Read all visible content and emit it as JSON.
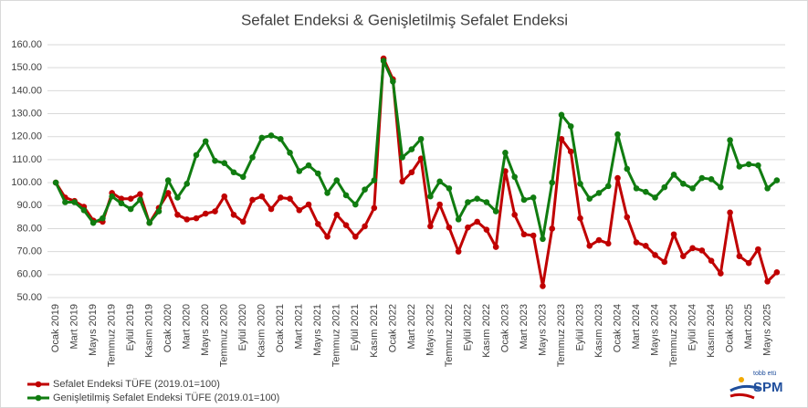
{
  "chart_data": {
    "type": "line",
    "title": "Sefalet Endeksi & Genişletilmiş Sefalet Endeksi",
    "categories": [
      "Ocak 2019",
      null,
      "Mart 2019",
      null,
      "Mayıs 2019",
      null,
      "Temmuz 2019",
      null,
      "Eylül 2019",
      null,
      "Kasım 2019",
      null,
      "Ocak 2020",
      null,
      "Mart 2020",
      null,
      "Mayıs 2020",
      null,
      "Temmuz 2020",
      null,
      "Eylül 2020",
      null,
      "Kasım 2020",
      null,
      "Ocak 2021",
      null,
      "Mart 2021",
      null,
      "Mayıs 2021",
      null,
      "Temmuz 2021",
      null,
      "Eylül 2021",
      null,
      "Kasım 2021",
      null,
      "Ocak 2022",
      null,
      "Mart 2022",
      null,
      "Mayıs 2022",
      null,
      "Temmuz 2022",
      null,
      "Eylül 2022",
      null,
      "Kasım 2022",
      null,
      "Ocak 2023",
      null,
      "Mart 2023",
      null,
      "Mayıs 2023",
      null,
      "Temmuz 2023",
      null,
      "Eylül 2023",
      null,
      "Kasım 2023",
      null,
      "Ocak 2024",
      null,
      "Mart 2024",
      null,
      "Mayıs 2024",
      null,
      "Temmuz 2024",
      null,
      "Eylül 2024",
      null,
      "Kasım 2024",
      null,
      "Ocak 2025",
      null,
      "Mart 2025",
      null,
      "Mayıs 2025",
      null
    ],
    "series": [
      {
        "name": "Sefalet Endeksi TÜFE (2019.01=100)",
        "color": "#c00000",
        "values": [
          100,
          93.5,
          92,
          89.5,
          83.5,
          83,
          95.5,
          93,
          93,
          95,
          82.5,
          89,
          95.5,
          86,
          84,
          84.5,
          86.5,
          87.5,
          94,
          86,
          83,
          92.5,
          94,
          88.5,
          93.5,
          93,
          88,
          90.5,
          82,
          76.5,
          86,
          81.5,
          76.5,
          81,
          89,
          154,
          145,
          100.5,
          104.5,
          110.5,
          81,
          90.5,
          80.5,
          70,
          80.5,
          83,
          79.5,
          72,
          105,
          86,
          77.5,
          77,
          55,
          80,
          119,
          113.5,
          84.5,
          72.5,
          75,
          73.5,
          102,
          85,
          74,
          72.5,
          68.5,
          65.5,
          77.5,
          68,
          71.5,
          70.5,
          66,
          60.5,
          87,
          68,
          65,
          71,
          57,
          61
        ]
      },
      {
        "name": "Genişletilmiş Sefalet Endeksi TÜFE (2019.01=100)",
        "color": "#107c10",
        "values": [
          100,
          91.5,
          91.5,
          88,
          82.5,
          84.5,
          94,
          91,
          88.5,
          92.5,
          82.5,
          87.5,
          101,
          93.5,
          99.5,
          112,
          118,
          109.5,
          108.5,
          104.5,
          102.5,
          111,
          119.5,
          120.5,
          119,
          113,
          105,
          107.5,
          104,
          95.5,
          101,
          94.5,
          90.5,
          97,
          101,
          153,
          144,
          111,
          114.5,
          119,
          94,
          100.5,
          97.5,
          84,
          91.5,
          93,
          91.5,
          87.5,
          113,
          102.5,
          92.5,
          93.5,
          75.5,
          100,
          129.5,
          124.5,
          99.5,
          93,
          95.5,
          98.5,
          121,
          106,
          97.5,
          96,
          93.5,
          98,
          103.5,
          99.5,
          97.5,
          102,
          101.5,
          98,
          118.5,
          107,
          108,
          107.5,
          97.5,
          101
        ]
      }
    ],
    "ylim": [
      50,
      160
    ],
    "yticks": [
      {
        "value": 50,
        "label": "50.00"
      },
      {
        "value": 60,
        "label": "60.00"
      },
      {
        "value": 70,
        "label": "70.00"
      },
      {
        "value": 80,
        "label": "80.00"
      },
      {
        "value": 90,
        "label": "90.00"
      },
      {
        "value": 100,
        "label": "100.00"
      },
      {
        "value": 110,
        "label": "110.00"
      },
      {
        "value": 120,
        "label": "120.00"
      },
      {
        "value": 130,
        "label": "130.00"
      },
      {
        "value": 140,
        "label": "140.00"
      },
      {
        "value": 150,
        "label": "150.00"
      },
      {
        "value": 160,
        "label": "160.00"
      }
    ],
    "grid": true,
    "legend": "bottom-left"
  },
  "logo": {
    "small": "tobb etü",
    "big": "SPM"
  }
}
